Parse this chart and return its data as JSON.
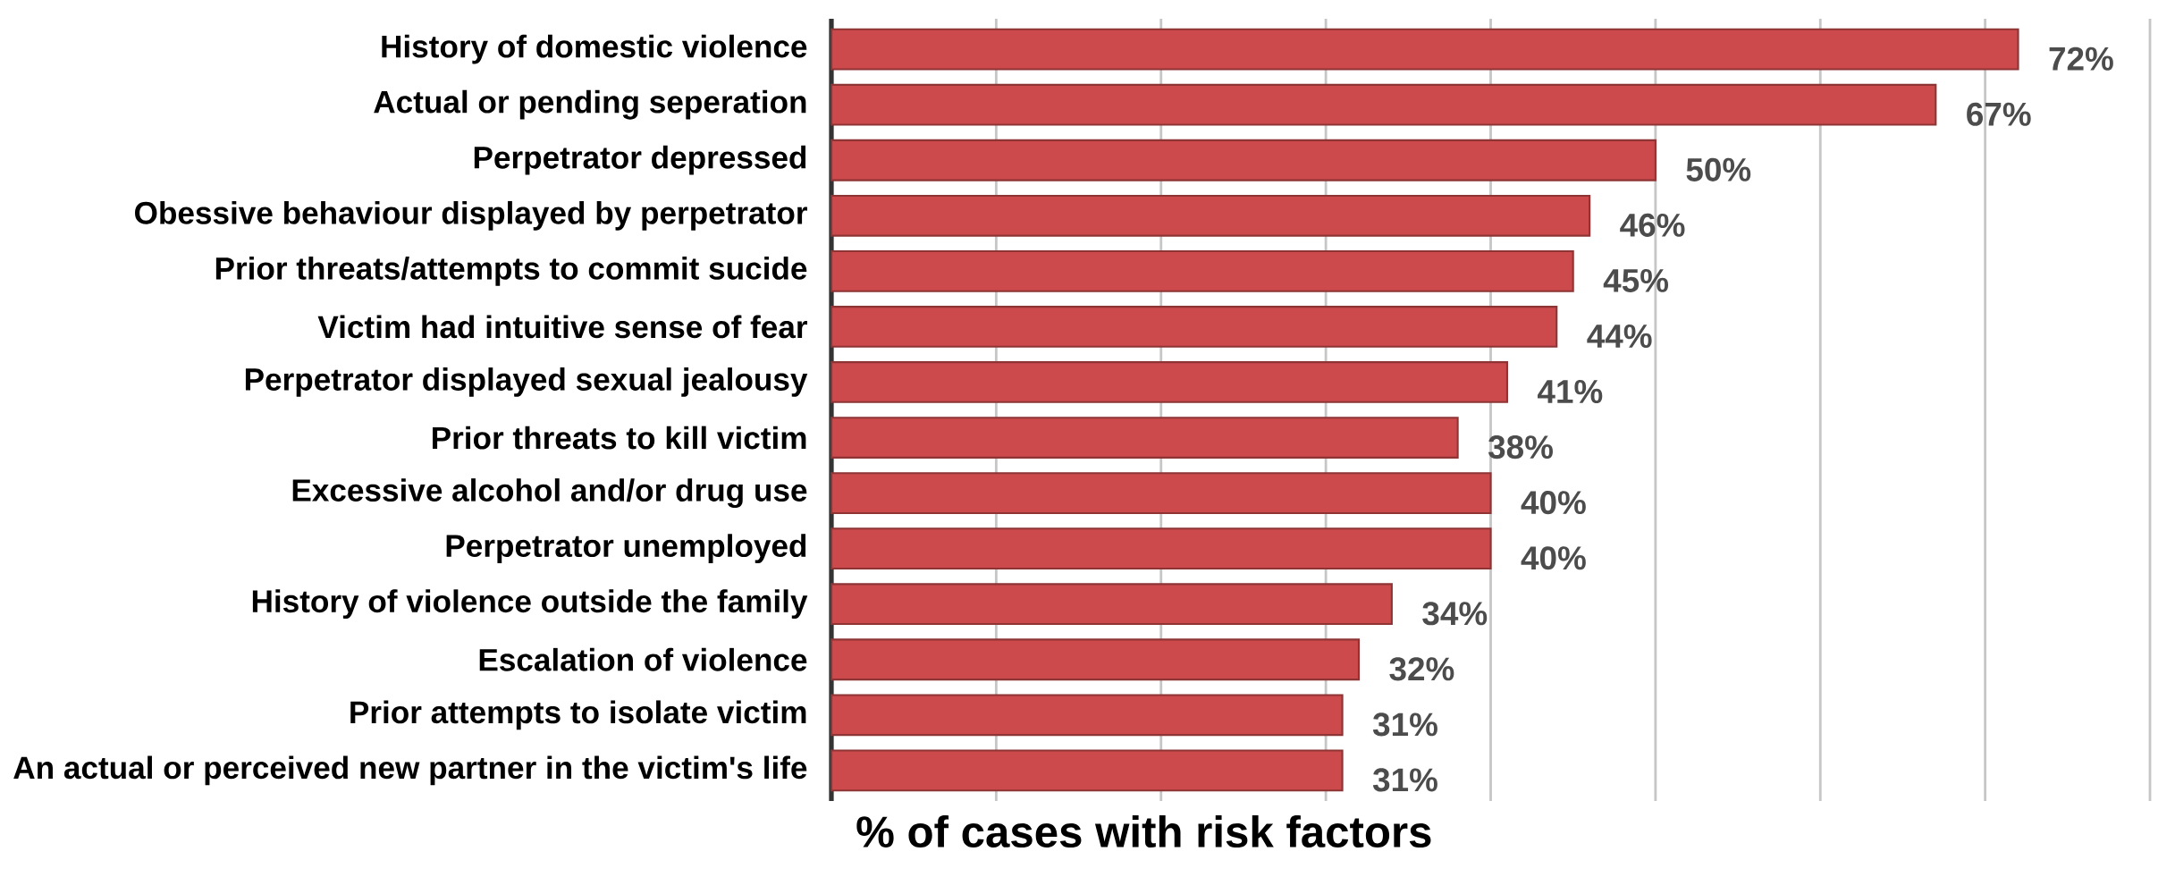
{
  "chart_data": {
    "type": "bar",
    "orientation": "horizontal",
    "xlabel": "% of cases with risk factors",
    "categories": [
      "History of domestic violence",
      "Actual or pending seperation",
      "Perpetrator depressed",
      "Obessive behaviour displayed by perpetrator",
      "Prior threats/attempts to commit sucide",
      "Victim had intuitive sense of fear",
      "Perpetrator displayed sexual jealousy",
      "Prior threats to kill victim",
      "Excessive alcohol and/or drug use",
      "Perpetrator unemployed",
      "History of violence outside the family",
      "Escalation of violence",
      "Prior attempts to isolate victim",
      "An actual or perceived new partner in the victim's life"
    ],
    "values": [
      72,
      67,
      50,
      46,
      45,
      44,
      41,
      38,
      40,
      40,
      34,
      32,
      31,
      31
    ],
    "value_labels": [
      "72%",
      "67%",
      "50%",
      "46%",
      "45%",
      "44%",
      "41%",
      "38%",
      "40%",
      "40%",
      "34%",
      "32%",
      "31%",
      "31%"
    ],
    "color": "#cc4a4c",
    "xlim": [
      0,
      80
    ],
    "xticks": [
      0,
      10,
      20,
      30,
      40,
      50,
      60,
      70,
      80
    ],
    "tick_labels": "y",
    "grid": "x"
  }
}
